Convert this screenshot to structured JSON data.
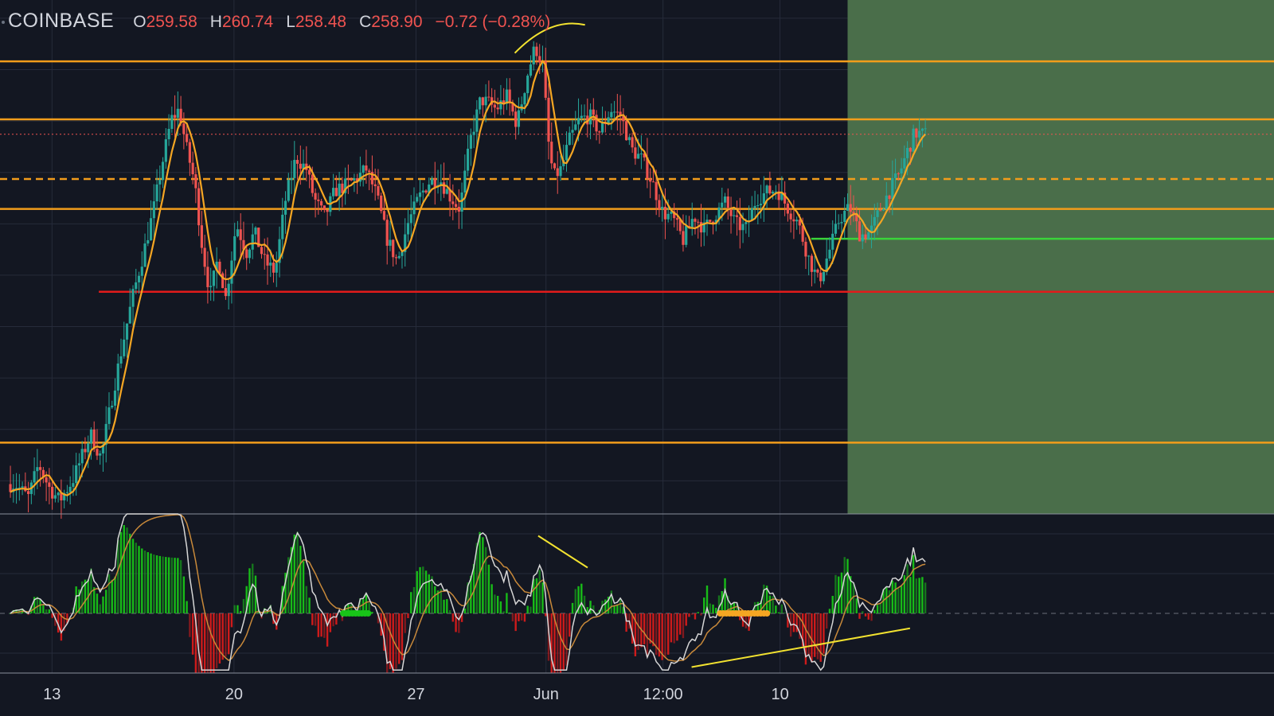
{
  "header": {
    "symbol": "COINBASE",
    "open_label": "O",
    "open": "259.58",
    "high_label": "H",
    "high": "260.74",
    "low_label": "L",
    "low": "258.48",
    "close_label": "C",
    "close": "258.90",
    "change": "−0.72 (−0.28%)"
  },
  "colors": {
    "background": "#131722",
    "grid": "#262b3a",
    "candle_up": "#26a69a",
    "candle_down": "#ef5350",
    "ma_line": "#f5a623",
    "level_orange": "#f29d1b",
    "level_red": "#e21b1b",
    "level_green": "#3ad33a",
    "shaded_zone": "#4a6e4a",
    "hist_pos": "#18c418",
    "hist_neg": "#d81b1b",
    "osc_fast": "#d6d6d6",
    "osc_slow": "#c8893a",
    "annotation": "#f2e230"
  },
  "chart_data": {
    "type": "line",
    "title": "",
    "x_tick_labels": [
      "13",
      "20",
      "27",
      "Jun",
      "12:00",
      "10"
    ],
    "x_ticks_day": [
      13,
      20,
      27,
      32,
      36.5,
      41
    ],
    "x_range_day": [
      11,
      60
    ],
    "price_range": [
      236,
      267
    ],
    "horizontal_levels": [
      {
        "price": 263.3,
        "style": "solid",
        "color": "level_orange"
      },
      {
        "price": 259.8,
        "style": "solid",
        "color": "level_orange"
      },
      {
        "price": 256.2,
        "style": "dashed",
        "color": "level_orange"
      },
      {
        "price": 254.4,
        "style": "solid",
        "color": "level_orange"
      },
      {
        "price": 252.6,
        "style": "solid",
        "color": "level_green",
        "from_day": 42.2
      },
      {
        "price": 249.4,
        "style": "solid",
        "color": "level_red",
        "from_day": 14.8
      },
      {
        "price": 240.3,
        "style": "solid",
        "color": "level_orange"
      },
      {
        "price": 258.9,
        "style": "dotted",
        "color": "candle_down"
      }
    ],
    "shaded_zone_from_day": 43.6,
    "price_keypoints": [
      [
        11.7,
        237.8
      ],
      [
        12.2,
        237.0
      ],
      [
        12.6,
        239.0
      ],
      [
        13.0,
        237.6
      ],
      [
        13.4,
        236.8
      ],
      [
        13.9,
        238.0
      ],
      [
        14.2,
        239.2
      ],
      [
        14.6,
        240.8
      ],
      [
        15.0,
        239.4
      ],
      [
        15.4,
        242.8
      ],
      [
        15.8,
        246.0
      ],
      [
        16.2,
        249.0
      ],
      [
        16.6,
        251.5
      ],
      [
        17.0,
        254.2
      ],
      [
        17.4,
        257.5
      ],
      [
        17.7,
        259.8
      ],
      [
        18.0,
        260.4
      ],
      [
        18.3,
        258.0
      ],
      [
        18.6,
        256.0
      ],
      [
        18.9,
        252.0
      ],
      [
        19.2,
        249.2
      ],
      [
        19.5,
        251.5
      ],
      [
        19.8,
        249.0
      ],
      [
        20.2,
        253.5
      ],
      [
        20.6,
        251.8
      ],
      [
        20.9,
        253.0
      ],
      [
        21.3,
        251.2
      ],
      [
        21.7,
        250.6
      ],
      [
        22.1,
        255.0
      ],
      [
        22.5,
        257.5
      ],
      [
        22.9,
        256.8
      ],
      [
        23.2,
        255.0
      ],
      [
        23.6,
        253.9
      ],
      [
        24.0,
        255.5
      ],
      [
        24.4,
        255.8
      ],
      [
        24.8,
        256.2
      ],
      [
        25.2,
        256.8
      ],
      [
        25.6,
        255.2
      ],
      [
        26.0,
        252.6
      ],
      [
        26.4,
        251.2
      ],
      [
        26.8,
        253.5
      ],
      [
        27.2,
        255.0
      ],
      [
        27.6,
        256.0
      ],
      [
        28.0,
        256.3
      ],
      [
        28.4,
        255.2
      ],
      [
        28.8,
        254.4
      ],
      [
        29.2,
        258.5
      ],
      [
        29.6,
        261.0
      ],
      [
        29.9,
        260.8
      ],
      [
        30.2,
        260.4
      ],
      [
        30.6,
        261.2
      ],
      [
        31.0,
        259.5
      ],
      [
        31.4,
        262.5
      ],
      [
        31.7,
        264.2
      ],
      [
        32.0,
        263.0
      ],
      [
        32.2,
        258.5
      ],
      [
        32.4,
        256.3
      ],
      [
        32.7,
        256.8
      ],
      [
        33.0,
        258.5
      ],
      [
        33.4,
        259.8
      ],
      [
        33.8,
        260.0
      ],
      [
        34.2,
        259.0
      ],
      [
        34.6,
        260.4
      ],
      [
        35.0,
        260.0
      ],
      [
        35.4,
        258.0
      ],
      [
        35.8,
        257.4
      ],
      [
        36.2,
        256.0
      ],
      [
        36.6,
        254.2
      ],
      [
        37.0,
        253.8
      ],
      [
        37.4,
        252.5
      ],
      [
        37.8,
        254.0
      ],
      [
        38.2,
        253.2
      ],
      [
        38.6,
        254.0
      ],
      [
        39.0,
        254.8
      ],
      [
        39.4,
        253.5
      ],
      [
        39.8,
        253.2
      ],
      [
        40.2,
        255.0
      ],
      [
        40.6,
        255.4
      ],
      [
        41.0,
        255.6
      ],
      [
        41.4,
        254.5
      ],
      [
        41.8,
        253.6
      ],
      [
        42.2,
        251.5
      ],
      [
        42.6,
        250.0
      ],
      [
        43.0,
        251.8
      ],
      [
        43.4,
        253.8
      ],
      [
        43.8,
        254.5
      ],
      [
        44.2,
        252.8
      ],
      [
        44.6,
        253.0
      ],
      [
        45.0,
        254.5
      ],
      [
        45.4,
        255.7
      ],
      [
        45.7,
        256.5
      ],
      [
        46.0,
        257.8
      ],
      [
        46.3,
        259.0
      ],
      [
        46.6,
        258.9
      ]
    ],
    "oscillator_range": [
      -6,
      10
    ],
    "oscillator_annotations": [
      {
        "kind": "trendline",
        "from": [
          31.7,
          7.8
        ],
        "to": [
          33.6,
          4.6
        ]
      },
      {
        "kind": "trendline",
        "from": [
          37.6,
          -5.4
        ],
        "to": [
          46.0,
          -1.5
        ]
      }
    ],
    "price_annotations": [
      {
        "kind": "trendline",
        "from": [
          30.8,
          263.8
        ],
        "to": [
          33.5,
          265.5
        ]
      }
    ],
    "oscillator_signal_dots": [
      {
        "color": "hist_pos",
        "from_day": 24.2,
        "to_day": 25.2
      },
      {
        "color": "ma_line",
        "from_day": 38.7,
        "to_day": 40.6
      }
    ]
  }
}
